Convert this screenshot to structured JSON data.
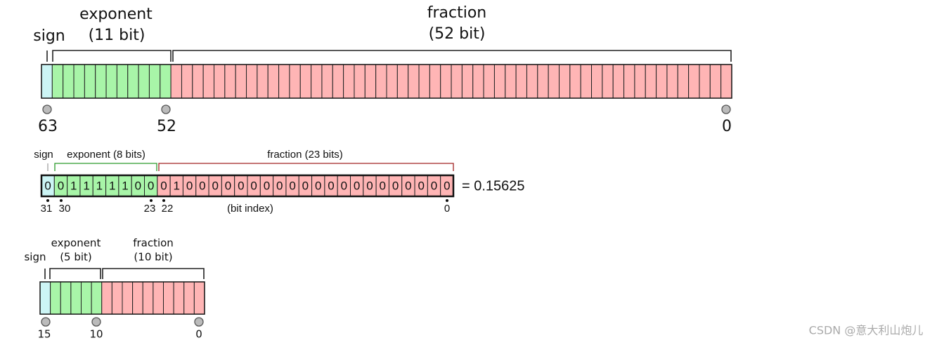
{
  "double": {
    "sign": "sign",
    "exponent": "exponent",
    "exponent_bits": "(11 bit)",
    "fraction": "fraction",
    "fraction_bits": "(52 bit)",
    "indices": [
      "63",
      "52",
      "0"
    ]
  },
  "single": {
    "sign": "sign",
    "exponent": "exponent (8 bits)",
    "fraction": "fraction (23 bits)",
    "bits": {
      "sign": [
        "0"
      ],
      "exponent": [
        "0",
        "1",
        "1",
        "1",
        "1",
        "1",
        "0",
        "0"
      ],
      "fraction": [
        "0",
        "1",
        "0",
        "0",
        "0",
        "0",
        "0",
        "0",
        "0",
        "0",
        "0",
        "0",
        "0",
        "0",
        "0",
        "0",
        "0",
        "0",
        "0",
        "0",
        "0",
        "0",
        "0"
      ]
    },
    "indices": [
      "31",
      "30",
      "23",
      "22",
      "0"
    ],
    "bit_index": "(bit index)",
    "result": "= 0.15625"
  },
  "half": {
    "sign": "sign",
    "exponent": "exponent",
    "exponent_bits": "(5 bit)",
    "fraction": "fraction",
    "fraction_bits": "(10 bit)",
    "indices": [
      "15",
      "10",
      "0"
    ]
  },
  "watermark": "CSDN @意大利山炮儿"
}
